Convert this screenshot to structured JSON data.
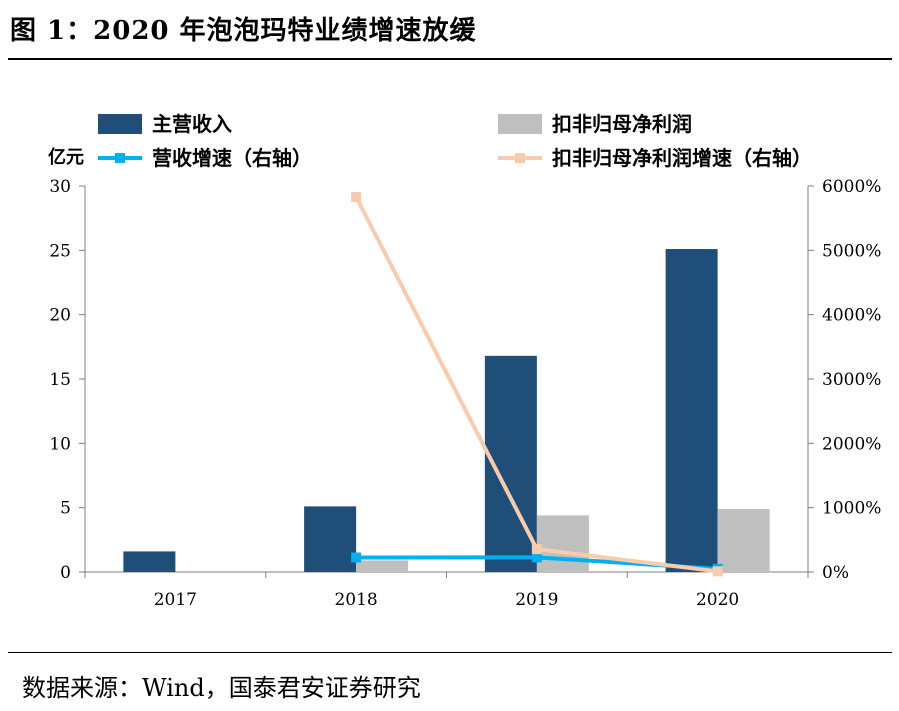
{
  "title": "图 1：2020 年泡泡玛特业绩增速放缓",
  "source": "数据来源：Wind，国泰君安证券研究",
  "chart_data": {
    "type": "bar",
    "categories": [
      "2017",
      "2018",
      "2019",
      "2020"
    ],
    "left_axis": {
      "unit_label": "亿元",
      "ylim": [
        0,
        30
      ],
      "ticks": [
        0,
        5,
        10,
        15,
        20,
        25,
        30
      ]
    },
    "right_axis": {
      "ylim": [
        0,
        6000
      ],
      "ticks": [
        "0%",
        "1000%",
        "2000%",
        "3000%",
        "4000%",
        "5000%",
        "6000%"
      ]
    },
    "series": [
      {
        "name": "主营收入",
        "kind": "bar",
        "axis": "left",
        "color": "#1f4e79",
        "values": [
          1.6,
          5.1,
          16.8,
          25.1
        ]
      },
      {
        "name": "扣非归母净利润",
        "kind": "bar",
        "axis": "left",
        "color": "#bfbfbf",
        "values": [
          0.0,
          0.9,
          4.4,
          4.9
        ]
      },
      {
        "name": "营收增速（右轴）",
        "kind": "line",
        "axis": "right",
        "color": "#00b0f0",
        "values": [
          null,
          225,
          227,
          49
        ]
      },
      {
        "name": "扣非归母净利润增速（右轴）",
        "kind": "line",
        "axis": "right",
        "color": "#f8cbad",
        "values": [
          null,
          5830,
          355,
          10
        ]
      }
    ],
    "grid": false,
    "legend_position": "top"
  }
}
